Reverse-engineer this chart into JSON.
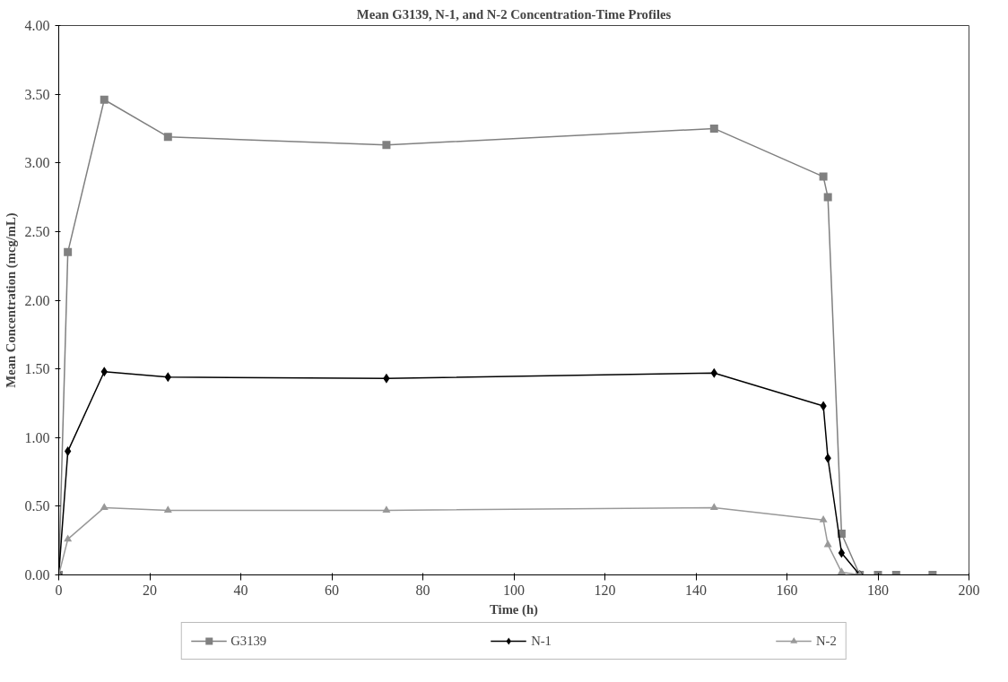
{
  "chart_data": {
    "type": "line",
    "title": "Mean G3139, N-1, and N-2 Concentration-Time Profiles",
    "xlabel": "Time (h)",
    "ylabel": "Mean Concentration (mcg/mL)",
    "xlim": [
      0,
      200
    ],
    "xticks": [
      0,
      20,
      40,
      60,
      80,
      100,
      120,
      140,
      160,
      180,
      200
    ],
    "ylim": [
      0,
      4
    ],
    "yticks": [
      {
        "value": 0,
        "label": "0.00"
      },
      {
        "value": 0.5,
        "label": "0.50"
      },
      {
        "value": 1,
        "label": "1.00"
      },
      {
        "value": 1.5,
        "label": "1.50"
      },
      {
        "value": 2,
        "label": "2.00"
      },
      {
        "value": 2.5,
        "label": "2.50"
      },
      {
        "value": 3,
        "label": "3.00"
      },
      {
        "value": 3.5,
        "label": "3.50"
      },
      {
        "value": 4,
        "label": "4.00"
      }
    ],
    "grid": false,
    "legend": "bottom",
    "series": [
      {
        "name": "G3139",
        "color": "#808080",
        "marker": "square",
        "x": [
          0,
          2,
          10,
          24,
          72,
          144,
          168,
          169,
          172,
          176,
          180,
          184,
          192
        ],
        "values": [
          0,
          2.35,
          3.46,
          3.19,
          3.13,
          3.25,
          2.9,
          2.75,
          0.3,
          0,
          0,
          0,
          0
        ]
      },
      {
        "name": "N-1",
        "color": "#000000",
        "marker": "diamond",
        "x": [
          0,
          2,
          10,
          24,
          72,
          144,
          168,
          169,
          172,
          176
        ],
        "values": [
          0,
          0.9,
          1.48,
          1.44,
          1.43,
          1.47,
          1.23,
          0.85,
          0.16,
          0
        ]
      },
      {
        "name": "N-2",
        "color": "#999999",
        "marker": "triangle",
        "x": [
          0,
          2,
          10,
          24,
          72,
          144,
          168,
          169,
          172,
          176
        ],
        "values": [
          0,
          0.26,
          0.49,
          0.47,
          0.47,
          0.49,
          0.4,
          0.22,
          0.02,
          0
        ]
      }
    ]
  }
}
